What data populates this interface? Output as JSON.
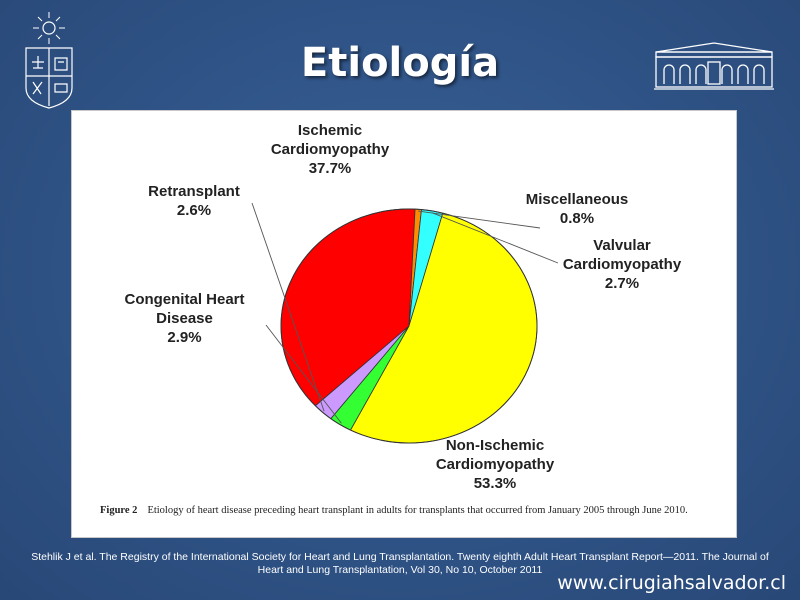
{
  "slide": {
    "title": "Etiología",
    "citation_line1": "Stehlik J et al. The Registry of the International Society for Heart and Lung Transplantation. Twenty eighth Adult Heart Transplant Report—2011. The Journal of",
    "citation_line2": "Heart and Lung Transplantation, Vol 30, No 10, October 2011",
    "website": "www.cirugiahsalvador.cl"
  },
  "figure": {
    "label": "Figure 2",
    "caption": "Etiology of heart disease preceding heart transplant in adults for transplants that occurred from January 2005 through June 2010."
  },
  "chart_data": {
    "type": "pie",
    "title": "",
    "slices": [
      {
        "label_line1": "Ischemic",
        "label_line2": "Cardiomyopathy",
        "percent_label": "37.7%",
        "value": 37.7,
        "color": "#ff0000"
      },
      {
        "label_line1": "Miscellaneous",
        "label_line2": "",
        "percent_label": "0.8%",
        "value": 0.8,
        "color": "#ff8c00"
      },
      {
        "label_line1": "Valvular",
        "label_line2": "Cardiomyopathy",
        "percent_label": "2.7%",
        "value": 2.7,
        "color": "#33ffff"
      },
      {
        "label_line1": "Non-Ischemic",
        "label_line2": "Cardiomyopathy",
        "percent_label": "53.3%",
        "value": 53.3,
        "color": "#ffff00"
      },
      {
        "label_line1": "Congenital Heart",
        "label_line2": "Disease",
        "percent_label": "2.9%",
        "value": 2.9,
        "color": "#33ff33"
      },
      {
        "label_line1": "Retransplant",
        "label_line2": "",
        "percent_label": "2.6%",
        "value": 2.6,
        "color": "#cc99ff"
      }
    ]
  }
}
